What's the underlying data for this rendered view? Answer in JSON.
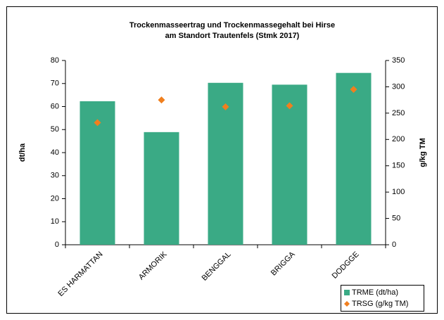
{
  "chart_data": {
    "type": "bar",
    "title": "Trockenmasseertrag und Trockenmassegehalt bei Hirse",
    "subtitle": "am Standort Trautenfels (Stmk 2017)",
    "categories": [
      "ES HARMATTAN",
      "ARMORIK",
      "BENGGAL",
      "BRIGGA",
      "DODGGE"
    ],
    "series": [
      {
        "name": "TRME (dt/ha)",
        "type": "bar",
        "color": "#3aaa85",
        "values": [
          62.3,
          48.9,
          70.3,
          69.5,
          74.6
        ]
      },
      {
        "name": "TRSG (g/kg TM)",
        "type": "scatter",
        "axis": "y2",
        "color": "#f07f1e",
        "values": [
          232,
          275,
          262,
          264,
          295
        ]
      }
    ],
    "ylabel": "dt/ha",
    "y2label": "g/kg TM",
    "ylim": [
      0,
      80
    ],
    "yticks": [
      0,
      10,
      20,
      30,
      40,
      50,
      60,
      70,
      80
    ],
    "y2lim": [
      0,
      350
    ],
    "y2ticks": [
      0,
      50,
      100,
      150,
      200,
      250,
      300,
      350
    ],
    "legend": "lower right"
  }
}
